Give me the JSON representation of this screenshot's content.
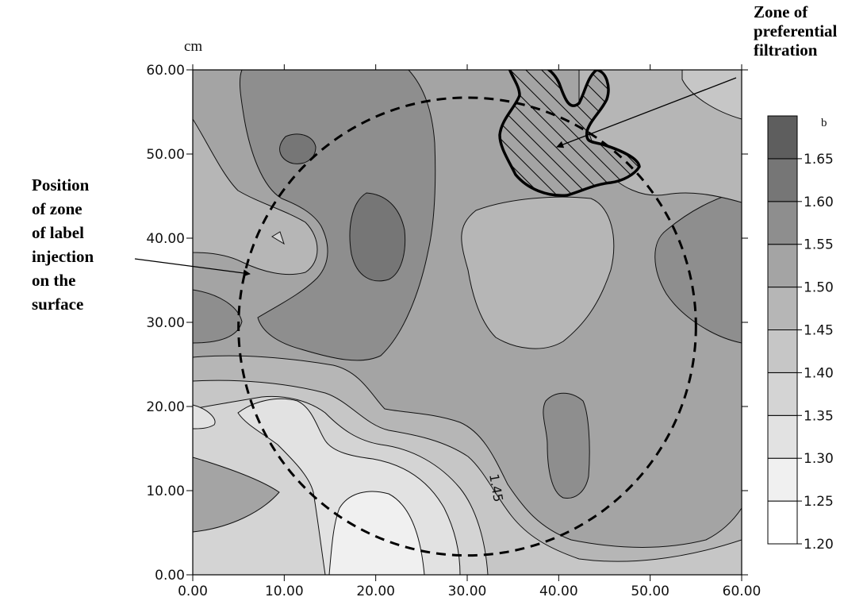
{
  "chart_data": {
    "type": "contour",
    "xlim": [
      0,
      60
    ],
    "ylim": [
      0,
      60
    ],
    "x_ticks": [
      "0.00",
      "10.00",
      "20.00",
      "30.00",
      "40.00",
      "50.00",
      "60.00"
    ],
    "y_ticks": [
      "0.00",
      "10.00",
      "20.00",
      "30.00",
      "40.00",
      "50.00",
      "60.00"
    ],
    "y_unit": "cm",
    "colorbar": {
      "title": "b",
      "levels": [
        "1.20",
        "1.25",
        "1.30",
        "1.35",
        "1.40",
        "1.45",
        "1.50",
        "1.55",
        "1.60",
        "1.65"
      ],
      "colors": [
        "#ffffff",
        "#f0f0f0",
        "#e2e2e2",
        "#d4d4d4",
        "#c6c6c6",
        "#b6b6b6",
        "#a4a4a4",
        "#8e8e8e",
        "#767676",
        "#5e5e5e"
      ]
    },
    "contour_label": "1.45",
    "injection_zone": {
      "center": [
        30,
        29.5
      ],
      "radius": 25
    },
    "annotations": [
      {
        "id": "filtration",
        "lines": [
          "Zone of",
          "preferential",
          "filtration"
        ]
      },
      {
        "id": "injection",
        "lines": [
          "Position",
          "of zone",
          "of label",
          "injection",
          "on the",
          "surface"
        ]
      }
    ]
  }
}
